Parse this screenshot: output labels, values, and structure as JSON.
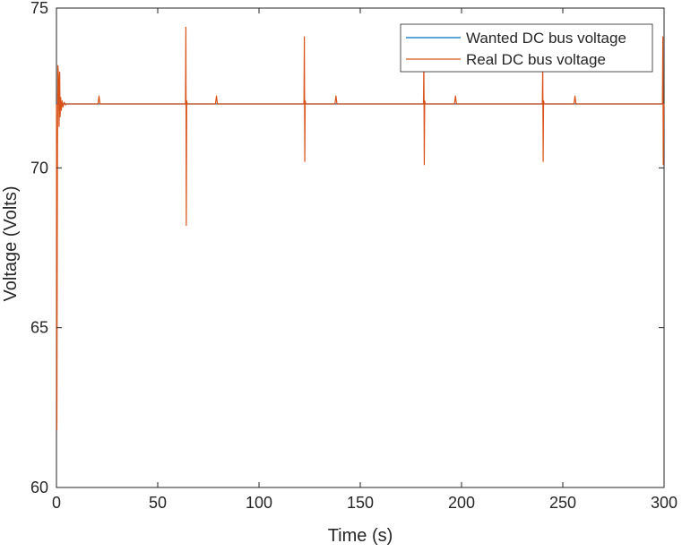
{
  "chart_data": {
    "type": "line",
    "title": "",
    "xlabel": "Time (s)",
    "ylabel": "Voltage (Volts)",
    "xlim": [
      0,
      300
    ],
    "ylim": [
      60,
      75
    ],
    "xticks": [
      0,
      50,
      100,
      150,
      200,
      250,
      300
    ],
    "yticks": [
      60,
      65,
      70,
      75
    ],
    "grid": false,
    "legend_position": "top-right",
    "series": [
      {
        "name": "Wanted DC bus voltage",
        "color": "#0072BD",
        "x": [
          0,
          300
        ],
        "y": [
          72,
          72
        ]
      },
      {
        "name": "Real DC bus voltage",
        "color": "#D95319",
        "x": [
          0,
          0.2,
          0.5,
          0.7,
          1.0,
          1.3,
          1.6,
          1.8,
          2.1,
          2.4,
          2.8,
          3.2,
          3.8,
          4.5,
          5,
          13,
          20.5,
          21,
          21.5,
          22,
          63.7,
          63.9,
          64.1,
          64.3,
          64.6,
          72,
          78.5,
          79,
          79.5,
          80,
          122.2,
          122.4,
          122.6,
          122.8,
          123.1,
          130.5,
          137.5,
          138,
          138.5,
          139,
          181.2,
          181.4,
          181.6,
          181.8,
          182.1,
          189.5,
          196.5,
          197,
          197.5,
          198,
          239.9,
          240.1,
          240.3,
          240.5,
          240.8,
          248.5,
          255.5,
          256,
          256.5,
          257,
          299.2,
          299.4,
          299.6,
          299.8,
          300
        ],
        "y": [
          72,
          61.8,
          70.5,
          73.2,
          72.9,
          71.3,
          73.0,
          71.6,
          72.2,
          71.8,
          72.1,
          71.9,
          72.05,
          71.97,
          72,
          72,
          72,
          72.25,
          72,
          72,
          72,
          74.4,
          68.2,
          72.1,
          72,
          72,
          72,
          72.25,
          72,
          72,
          72,
          74.1,
          70.2,
          72.1,
          72,
          72,
          72,
          72.25,
          72,
          72,
          72,
          73.4,
          70.1,
          72.1,
          72,
          72,
          72,
          72.25,
          72,
          72,
          72,
          73.3,
          70.2,
          72.1,
          72,
          72,
          72,
          72.25,
          72,
          72,
          72,
          74.1,
          70.1,
          71.9,
          72
        ]
      }
    ]
  }
}
